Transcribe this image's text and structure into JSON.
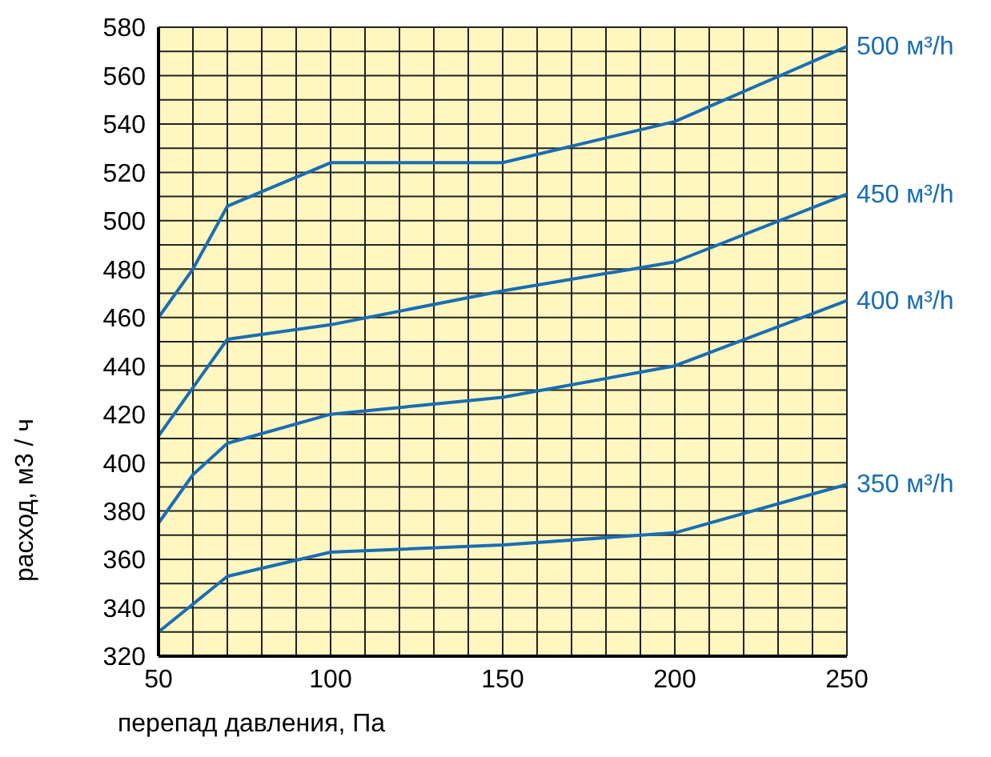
{
  "chart_data": {
    "type": "line",
    "xlabel": "перепад давления, Па",
    "ylabel": "расход, м3 / ч",
    "xlim": [
      50,
      250
    ],
    "ylim": [
      320,
      580
    ],
    "xticks": [
      50,
      {
        "value": 60,
        "label": null
      },
      {
        "value": 70,
        "label": null
      },
      {
        "value": 80,
        "label": null
      },
      {
        "value": 90,
        "label": null
      },
      100,
      {
        "value": 110,
        "label": null
      },
      {
        "value": 120,
        "label": null
      },
      {
        "value": 130,
        "label": null
      },
      {
        "value": 140,
        "label": null
      },
      150,
      {
        "value": 160,
        "label": null
      },
      {
        "value": 170,
        "label": null
      },
      {
        "value": 180,
        "label": null
      },
      {
        "value": 190,
        "label": null
      },
      200,
      {
        "value": 210,
        "label": null
      },
      {
        "value": 220,
        "label": null
      },
      {
        "value": 230,
        "label": null
      },
      {
        "value": 240,
        "label": null
      },
      250
    ],
    "yticks": [
      320,
      {
        "value": 330,
        "label": null
      },
      340,
      {
        "value": 350,
        "label": null
      },
      360,
      {
        "value": 370,
        "label": null
      },
      380,
      {
        "value": 390,
        "label": null
      },
      400,
      {
        "value": 410,
        "label": null
      },
      420,
      {
        "value": 430,
        "label": null
      },
      440,
      {
        "value": 450,
        "label": null
      },
      460,
      {
        "value": 470,
        "label": null
      },
      480,
      {
        "value": 490,
        "label": null
      },
      500,
      {
        "value": 510,
        "label": null
      },
      520,
      {
        "value": 530,
        "label": null
      },
      540,
      {
        "value": 550,
        "label": null
      },
      560,
      {
        "value": 570,
        "label": null
      },
      580
    ],
    "grid": true,
    "legend": false,
    "marker": "none",
    "line_style": "solid",
    "series": [
      {
        "name": "500 м³/h",
        "color": "#1a6db4",
        "x": [
          50,
          60,
          70,
          100,
          150,
          200,
          250
        ],
        "values": [
          460,
          480,
          506,
          524,
          524,
          541,
          572
        ]
      },
      {
        "name": "450 м³/h",
        "color": "#1a6db4",
        "x": [
          50,
          70,
          100,
          150,
          200,
          250
        ],
        "values": [
          411,
          451,
          457,
          471,
          483,
          511
        ]
      },
      {
        "name": "400 м³/h",
        "color": "#1a6db4",
        "x": [
          50,
          60,
          70,
          100,
          150,
          200,
          250
        ],
        "values": [
          375,
          395,
          408,
          420,
          427,
          440,
          467
        ]
      },
      {
        "name": "350 м³/h",
        "color": "#1a6db4",
        "x": [
          50,
          70,
          100,
          150,
          200,
          250
        ],
        "values": [
          330,
          353,
          363,
          366,
          371,
          391
        ]
      }
    ]
  }
}
